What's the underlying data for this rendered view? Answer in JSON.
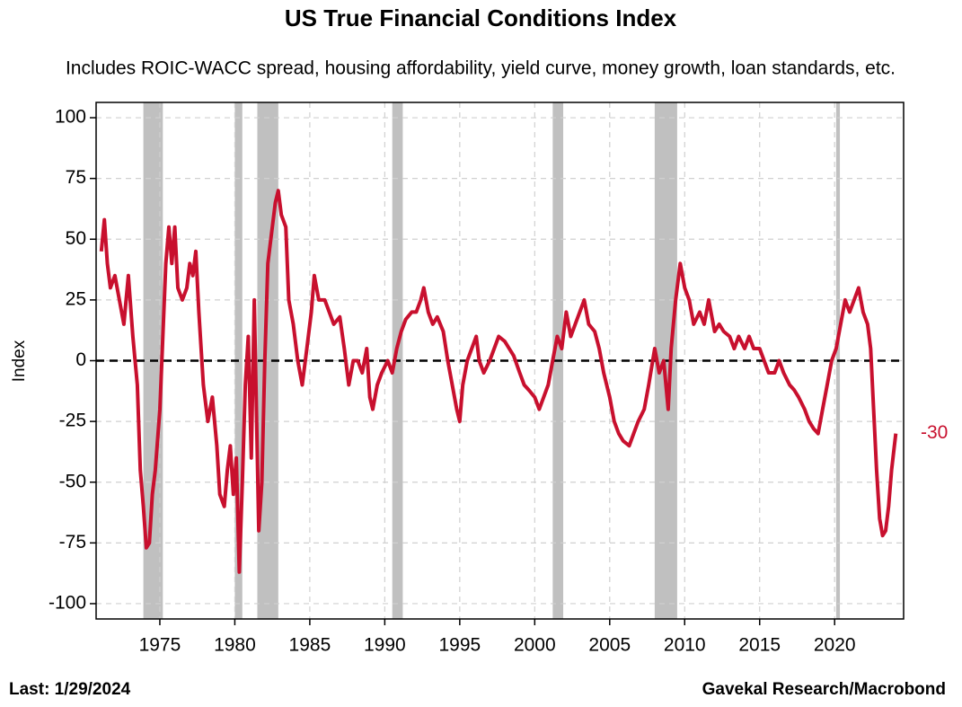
{
  "chart_data": {
    "type": "line",
    "title": "US True Financial Conditions Index",
    "subtitle": "Includes ROIC-WACC spread, housing affordability, yield curve, money growth, loan standards, etc.",
    "ylabel": "Index",
    "footer_left": "Last: 1/29/2024",
    "footer_right": "Gavekal Research/Macrobond",
    "end_label": -30,
    "xlim": [
      1970.75,
      2024.6
    ],
    "xticks": [
      1975,
      1980,
      1985,
      1990,
      1995,
      2000,
      2005,
      2010,
      2015,
      2020
    ],
    "ylim": [
      -106.3,
      106.3
    ],
    "yticks": [
      -100,
      -75,
      -50,
      -25,
      0,
      25,
      50,
      75,
      100
    ],
    "grid": true,
    "zero_line": 0,
    "recessions": [
      [
        1973.9,
        1975.2
      ],
      [
        1980.0,
        1980.5
      ],
      [
        1981.5,
        1982.9
      ],
      [
        1990.5,
        1991.2
      ],
      [
        2001.2,
        2001.9
      ],
      [
        2008.0,
        2009.5
      ],
      [
        2020.1,
        2020.35
      ]
    ],
    "recession_color": "#c0c0c0",
    "x": [
      1971.1,
      1971.3,
      1971.5,
      1971.7,
      1972.0,
      1972.3,
      1972.6,
      1972.9,
      1973.2,
      1973.5,
      1973.7,
      1973.9,
      1974.1,
      1974.3,
      1974.5,
      1974.7,
      1975.0,
      1975.2,
      1975.4,
      1975.6,
      1975.8,
      1976.0,
      1976.2,
      1976.5,
      1976.8,
      1977.0,
      1977.2,
      1977.4,
      1977.6,
      1977.9,
      1978.2,
      1978.5,
      1978.8,
      1979.0,
      1979.3,
      1979.5,
      1979.7,
      1979.9,
      1980.1,
      1980.3,
      1980.5,
      1980.7,
      1980.9,
      1981.1,
      1981.3,
      1981.6,
      1981.8,
      1982.0,
      1982.2,
      1982.4,
      1982.7,
      1982.9,
      1983.1,
      1983.4,
      1983.6,
      1983.9,
      1984.2,
      1984.5,
      1984.8,
      1985.1,
      1985.3,
      1985.6,
      1986.0,
      1986.3,
      1986.6,
      1987.0,
      1987.3,
      1987.6,
      1987.9,
      1988.2,
      1988.5,
      1988.8,
      1989.0,
      1989.2,
      1989.5,
      1989.8,
      1990.2,
      1990.5,
      1990.8,
      1991.1,
      1991.4,
      1991.8,
      1992.1,
      1992.4,
      1992.6,
      1992.9,
      1993.2,
      1993.5,
      1993.9,
      1994.2,
      1994.5,
      1994.8,
      1995.0,
      1995.2,
      1995.5,
      1995.8,
      1996.1,
      1996.3,
      1996.6,
      1997.0,
      1997.3,
      1997.6,
      1998.0,
      1998.3,
      1998.6,
      1999.0,
      1999.3,
      1999.6,
      2000.0,
      2000.3,
      2000.6,
      2000.9,
      2001.2,
      2001.5,
      2001.8,
      2002.1,
      2002.4,
      2002.7,
      2003.0,
      2003.3,
      2003.6,
      2004.0,
      2004.3,
      2004.6,
      2005.0,
      2005.3,
      2005.6,
      2005.9,
      2006.3,
      2006.6,
      2006.9,
      2007.3,
      2007.6,
      2008.0,
      2008.3,
      2008.6,
      2008.9,
      2009.1,
      2009.4,
      2009.7,
      2010.0,
      2010.3,
      2010.6,
      2011.0,
      2011.3,
      2011.6,
      2012.0,
      2012.3,
      2012.6,
      2013.0,
      2013.3,
      2013.6,
      2014.0,
      2014.3,
      2014.6,
      2015.0,
      2015.3,
      2015.6,
      2016.0,
      2016.3,
      2016.6,
      2017.0,
      2017.3,
      2017.6,
      2018.0,
      2018.3,
      2018.6,
      2018.9,
      2019.2,
      2019.5,
      2019.8,
      2020.1,
      2020.4,
      2020.7,
      2021.0,
      2021.3,
      2021.6,
      2021.9,
      2022.2,
      2022.4,
      2022.6,
      2022.8,
      2023.0,
      2023.2,
      2023.4,
      2023.6,
      2023.8,
      2024.08
    ],
    "series": [
      {
        "name": "US True Financial Conditions Index",
        "color": "#c8102e",
        "values": [
          45,
          58,
          40,
          30,
          35,
          25,
          15,
          35,
          10,
          -10,
          -45,
          -60,
          -77,
          -75,
          -55,
          -45,
          -20,
          10,
          40,
          55,
          40,
          55,
          30,
          25,
          30,
          40,
          35,
          45,
          20,
          -10,
          -25,
          -15,
          -35,
          -55,
          -60,
          -45,
          -35,
          -55,
          -40,
          -87,
          -50,
          -10,
          10,
          -40,
          25,
          -70,
          -50,
          0,
          40,
          50,
          65,
          70,
          60,
          55,
          25,
          15,
          0,
          -10,
          5,
          20,
          35,
          25,
          25,
          20,
          15,
          18,
          5,
          -10,
          0,
          0,
          -5,
          5,
          -15,
          -20,
          -10,
          -5,
          0,
          -5,
          5,
          12,
          17,
          20,
          20,
          25,
          30,
          20,
          15,
          18,
          12,
          0,
          -10,
          -20,
          -25,
          -10,
          0,
          5,
          10,
          0,
          -5,
          0,
          5,
          10,
          8,
          5,
          2,
          -5,
          -10,
          -12,
          -15,
          -20,
          -15,
          -10,
          0,
          10,
          5,
          20,
          10,
          15,
          20,
          25,
          15,
          12,
          5,
          -5,
          -15,
          -25,
          -30,
          -33,
          -35,
          -30,
          -25,
          -20,
          -10,
          5,
          -5,
          0,
          -20,
          5,
          25,
          40,
          30,
          25,
          15,
          20,
          15,
          25,
          12,
          15,
          12,
          10,
          5,
          10,
          5,
          10,
          5,
          5,
          0,
          -5,
          -5,
          0,
          -5,
          -10,
          -12,
          -15,
          -20,
          -25,
          -28,
          -30,
          -20,
          -10,
          0,
          5,
          15,
          25,
          20,
          25,
          30,
          20,
          15,
          5,
          -20,
          -45,
          -65,
          -72,
          -70,
          -60,
          -45,
          -30
        ]
      }
    ]
  }
}
